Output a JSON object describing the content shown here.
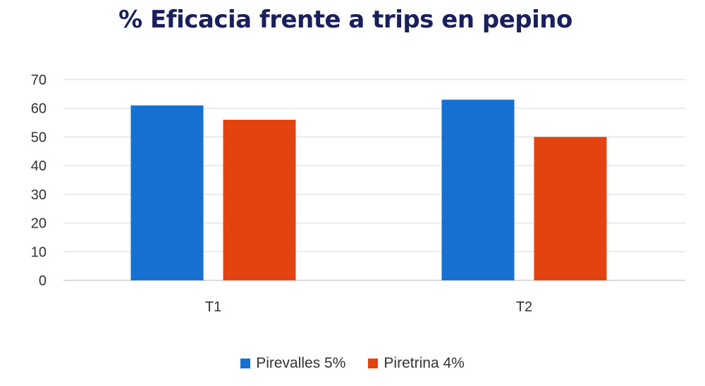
{
  "chart_data": {
    "type": "bar",
    "title": "% Eficacia frente a trips en pepino",
    "categories": [
      "T1",
      "T2"
    ],
    "series": [
      {
        "name": "Pirevalles 5%",
        "values": [
          61,
          63
        ],
        "color": "#1570d1"
      },
      {
        "name": "Piretrina 4%",
        "values": [
          56,
          50
        ],
        "color": "#e3430f"
      }
    ],
    "ylim": [
      0,
      70
    ],
    "yticks": [
      0,
      10,
      20,
      30,
      40,
      50,
      60,
      70
    ],
    "grid": true,
    "legend": "bottom"
  }
}
